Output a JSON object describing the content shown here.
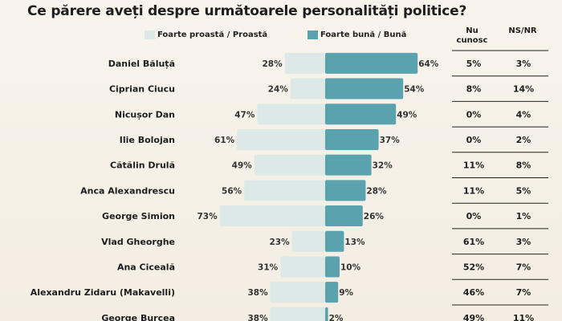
{
  "chart_data": {
    "type": "bar",
    "title": "Ce părere aveți despre următoarele personalități politice?",
    "legend": [
      {
        "name": "Foarte proastă / Proastă",
        "color": "#dde9e7"
      },
      {
        "name": "Foarte bună / Bună",
        "color": "#5aa3ae"
      }
    ],
    "columns": [
      "Nu cunosc",
      "NS/NR"
    ],
    "categories": [
      "Daniel Băluță",
      "Ciprian Ciucu",
      "Nicușor Dan",
      "Ilie Bolojan",
      "Cătălin Drulă",
      "Anca Alexandrescu",
      "George Simion",
      "Vlad Gheorghe",
      "Ana Ciceală",
      "Alexandru Zidaru (Makavelli)",
      "George Burcea"
    ],
    "series": [
      {
        "name": "Foarte proastă / Proastă",
        "values": [
          28,
          24,
          47,
          61,
          49,
          56,
          73,
          23,
          31,
          38,
          38
        ],
        "labels": [
          "28%",
          "24%",
          "47%",
          "61%",
          "49%",
          "56%",
          "73%",
          "23%",
          "31%",
          "38%",
          "38%"
        ]
      },
      {
        "name": "Foarte bună / Bună",
        "values": [
          64,
          54,
          49,
          37,
          32,
          28,
          26,
          13,
          10,
          9,
          2
        ],
        "labels": [
          "64%",
          "54%",
          "49%",
          "37%",
          "32%",
          "28%",
          "26%",
          "13%",
          "10%",
          "9%",
          "2%"
        ]
      }
    ],
    "nu_cunosc": [
      "5%",
      "8%",
      "0%",
      "0%",
      "11%",
      "11%",
      "0%",
      "61%",
      "52%",
      "46%",
      "49%"
    ],
    "ns_nr": [
      "3%",
      "14%",
      "4%",
      "2%",
      "8%",
      "5%",
      "1%",
      "3%",
      "7%",
      "7%",
      "11%"
    ]
  }
}
